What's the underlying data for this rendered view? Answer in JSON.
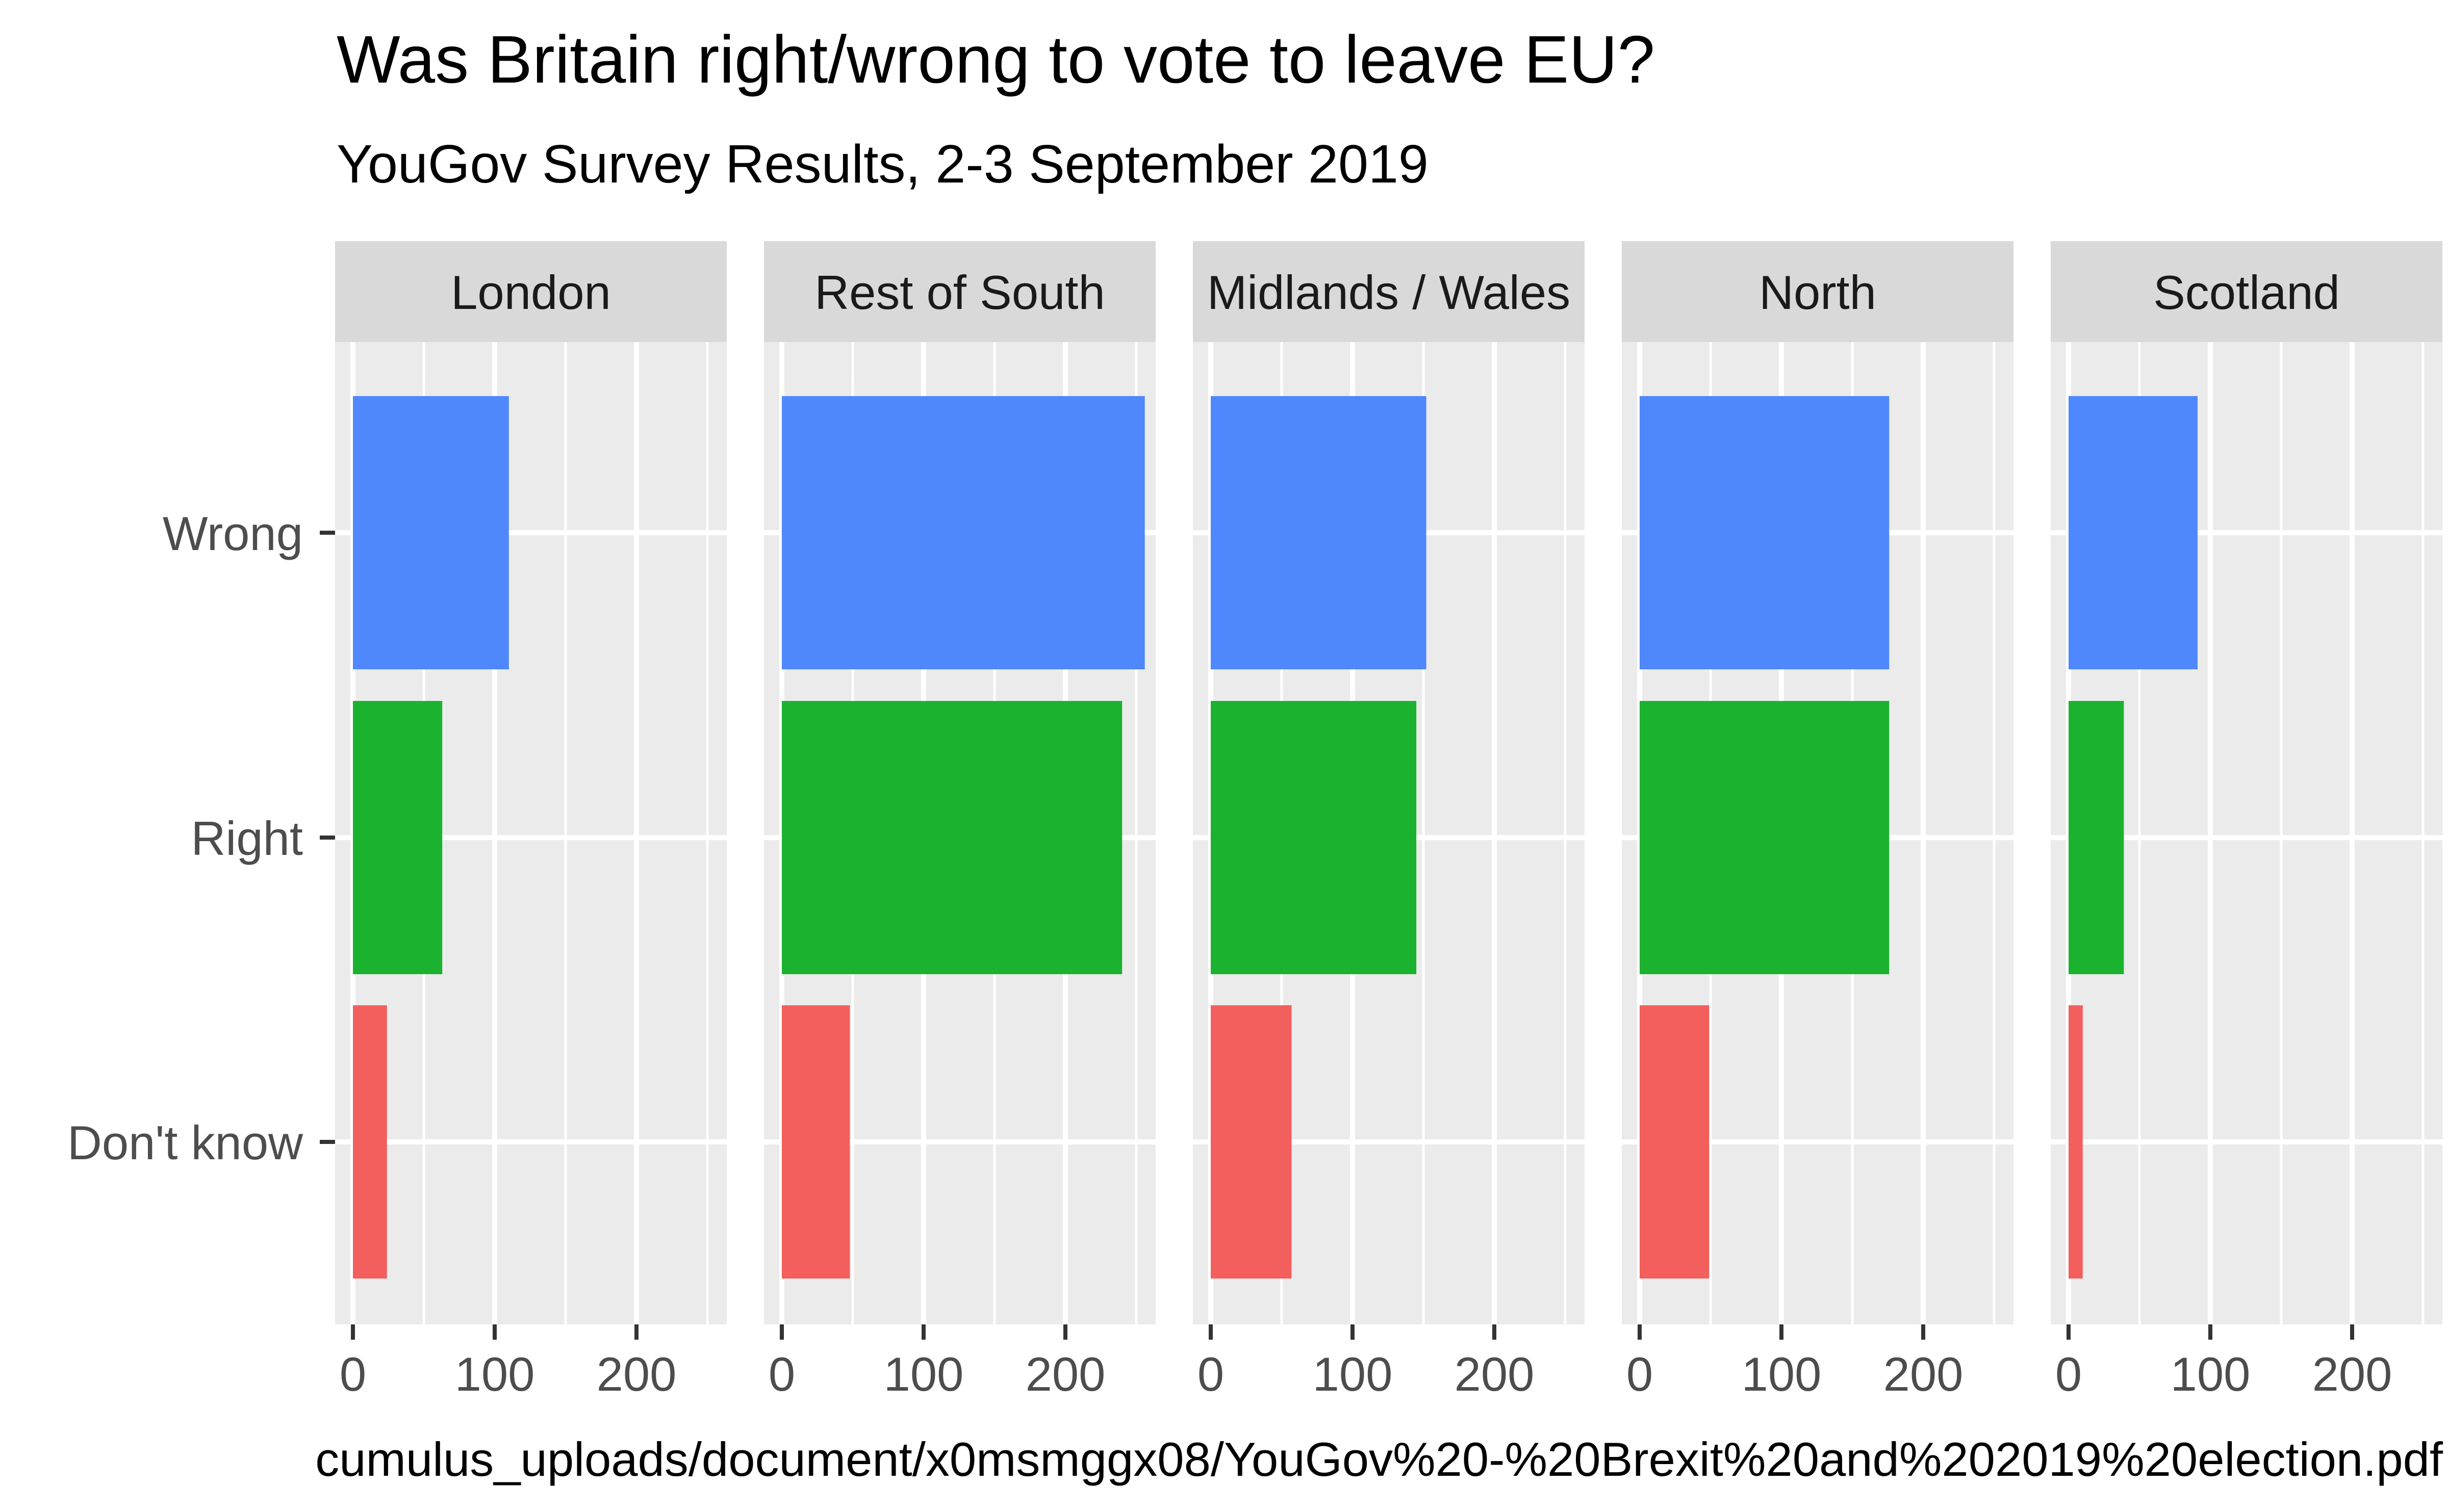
{
  "chart_data": {
    "type": "bar",
    "orientation": "horizontal",
    "title": "Was Britain right/wrong to vote to leave EU?",
    "subtitle": "YouGov Survey Results, 2-3 September 2019",
    "caption": "cumulus_uploads/document/x0msmggx08/YouGov%20-%20Brexit%20and%202019%20election.pdf",
    "categories": [
      "Wrong",
      "Right",
      "Don't know"
    ],
    "category_colors": {
      "Wrong": "#4f87fd",
      "Right": "#1ab22f",
      "Don't know": "#f25f5c"
    },
    "x_ticks": [
      0,
      100,
      200
    ],
    "xlim": [
      0,
      270
    ],
    "grid": true,
    "legend": "none",
    "panels": [
      {
        "name": "London",
        "values": {
          "Wrong": 110,
          "Right": 63,
          "Don't know": 24
        }
      },
      {
        "name": "Rest of South",
        "values": {
          "Wrong": 256,
          "Right": 240,
          "Don't know": 48
        }
      },
      {
        "name": "Midlands / Wales",
        "values": {
          "Wrong": 152,
          "Right": 145,
          "Don't know": 57
        }
      },
      {
        "name": "North",
        "values": {
          "Wrong": 176,
          "Right": 176,
          "Don't know": 49
        }
      },
      {
        "name": "Scotland",
        "values": {
          "Wrong": 91,
          "Right": 39,
          "Don't know": 10
        }
      }
    ]
  }
}
